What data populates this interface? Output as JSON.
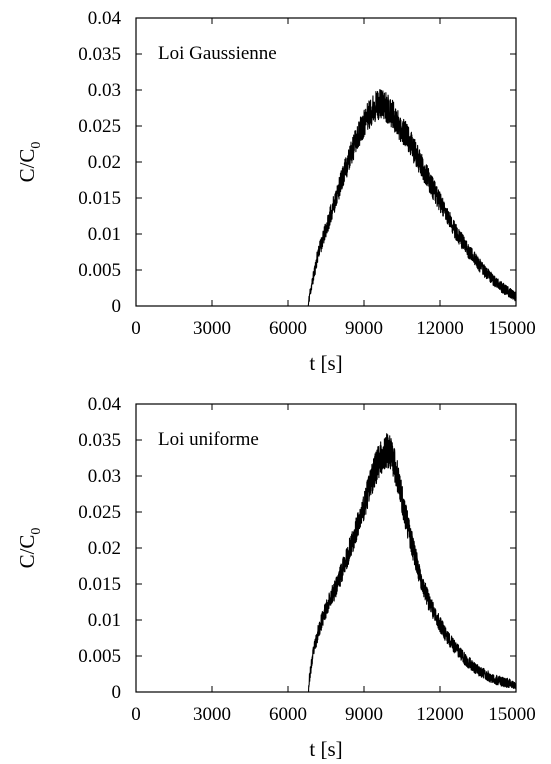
{
  "chart_data": [
    {
      "type": "line",
      "annotation": "Loi Gaussienne",
      "xlabel": "t [s]",
      "ylabel": {
        "main": "C/C",
        "sub": "0"
      },
      "xlim": [
        0,
        15000
      ],
      "ylim": [
        0,
        0.04
      ],
      "xticks": [
        0,
        3000,
        6000,
        9000,
        12000,
        15000
      ],
      "xtick_labels": [
        "0",
        "3000",
        "6000",
        "9000",
        "12000",
        "15000"
      ],
      "yticks": [
        0,
        0.005,
        0.01,
        0.015,
        0.02,
        0.025,
        0.03,
        0.035,
        0.04
      ],
      "ytick_labels": [
        "0",
        "0.005",
        "0.01",
        "0.015",
        "0.02",
        "0.025",
        "0.03",
        "0.035",
        "0.04"
      ],
      "grid": false,
      "series": [
        {
          "color": "#000000",
          "noisy": true,
          "x": [
            6800,
            6850,
            7000,
            7200,
            7400,
            7600,
            7800,
            8000,
            8200,
            8400,
            8600,
            8800,
            9000,
            9200,
            9400,
            9600,
            9800,
            10000,
            10200,
            10400,
            10600,
            10800,
            11000,
            11200,
            11400,
            11600,
            11800,
            12000,
            12200,
            12400,
            12600,
            12800,
            13000,
            13200,
            13400,
            13600,
            13800,
            14000,
            14200,
            14400,
            14600,
            14800,
            15000
          ],
          "y": [
            0.0,
            0.0015,
            0.004,
            0.0075,
            0.0095,
            0.0118,
            0.014,
            0.0162,
            0.0183,
            0.0203,
            0.0222,
            0.024,
            0.0255,
            0.0266,
            0.0276,
            0.0281,
            0.0279,
            0.0273,
            0.0262,
            0.025,
            0.024,
            0.0228,
            0.0214,
            0.02,
            0.0186,
            0.0172,
            0.0158,
            0.0144,
            0.013,
            0.0117,
            0.0105,
            0.0094,
            0.0083,
            0.0073,
            0.0064,
            0.0055,
            0.0047,
            0.004,
            0.0033,
            0.0027,
            0.0022,
            0.0017,
            0.0013
          ]
        }
      ]
    },
    {
      "type": "line",
      "annotation": "Loi uniforme",
      "xlabel": "t [s]",
      "ylabel": {
        "main": "C/C",
        "sub": "0"
      },
      "xlim": [
        0,
        15000
      ],
      "ylim": [
        0,
        0.04
      ],
      "xticks": [
        0,
        3000,
        6000,
        9000,
        12000,
        15000
      ],
      "xtick_labels": [
        "0",
        "3000",
        "6000",
        "9000",
        "12000",
        "15000"
      ],
      "yticks": [
        0,
        0.005,
        0.01,
        0.015,
        0.02,
        0.025,
        0.03,
        0.035,
        0.04
      ],
      "ytick_labels": [
        "0",
        "0.005",
        "0.01",
        "0.015",
        "0.02",
        "0.025",
        "0.03",
        "0.035",
        "0.04"
      ],
      "grid": false,
      "series": [
        {
          "color": "#000000",
          "noisy": true,
          "x": [
            6800,
            6850,
            7000,
            7200,
            7400,
            7600,
            7800,
            8000,
            8200,
            8400,
            8600,
            8800,
            9000,
            9200,
            9400,
            9600,
            9800,
            10000,
            10200,
            10400,
            10600,
            10800,
            11000,
            11200,
            11400,
            11600,
            11800,
            12000,
            12200,
            12400,
            12600,
            12800,
            13000,
            13200,
            13400,
            13600,
            13800,
            14000,
            14200,
            14400,
            14600,
            14800,
            15000
          ],
          "y": [
            0.0,
            0.002,
            0.0055,
            0.0085,
            0.0105,
            0.0125,
            0.0138,
            0.0155,
            0.0175,
            0.0195,
            0.0215,
            0.0235,
            0.0258,
            0.0282,
            0.0305,
            0.0322,
            0.0333,
            0.0336,
            0.0318,
            0.0285,
            0.025,
            0.022,
            0.019,
            0.0162,
            0.014,
            0.0122,
            0.0108,
            0.0094,
            0.0082,
            0.0071,
            0.0062,
            0.0053,
            0.0045,
            0.0039,
            0.0033,
            0.0028,
            0.0024,
            0.002,
            0.0017,
            0.0015,
            0.0013,
            0.0012,
            0.0011
          ]
        }
      ]
    }
  ]
}
